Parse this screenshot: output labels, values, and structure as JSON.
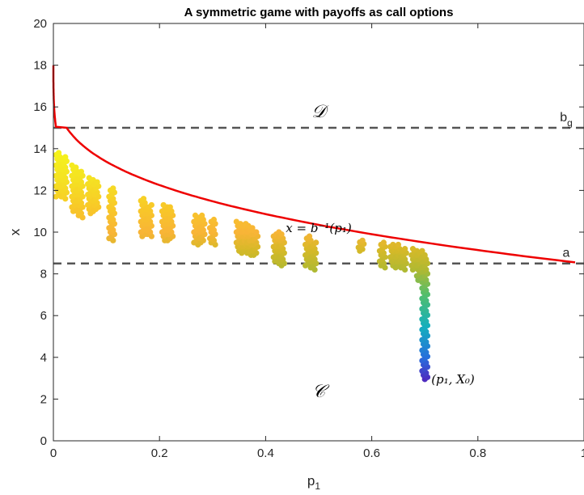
{
  "chart_data": {
    "type": "scatter",
    "title": "A symmetric game with payoffs as call options",
    "xlabel": "p",
    "xlabel_sub": "1",
    "ylabel": "x",
    "xlim": [
      0,
      1
    ],
    "ylim": [
      0,
      20
    ],
    "x_ticks": [
      "0",
      "0.2",
      "0.4",
      "0.6",
      "0.8",
      "1"
    ],
    "y_ticks": [
      "0",
      "2",
      "4",
      "6",
      "8",
      "10",
      "12",
      "14",
      "16",
      "18",
      "20"
    ],
    "grid": false,
    "reference_lines": [
      {
        "label": "b",
        "label_sub": "g",
        "y": 15,
        "style": "dashed",
        "color": "#555555"
      },
      {
        "label": "a",
        "y": 8.5,
        "style": "dashed",
        "color": "#555555"
      }
    ],
    "curve": {
      "name": "x = b⁻¹(p₁)",
      "color": "#ee0000"
    },
    "region_labels": [
      {
        "text": "𝒟",
        "x": 0.5,
        "y": 15.5
      },
      {
        "text": "𝒞",
        "x": 0.5,
        "y": 2.1
      }
    ],
    "annotations": [
      {
        "text": "x = b⁻¹(p₁)",
        "x": 0.5,
        "y": 10.0
      },
      {
        "text": "(p₁, X₀)",
        "x": 0.7,
        "y": 2.95
      }
    ],
    "scatter_columns": [
      {
        "x": 0.01,
        "ymin": 11.7,
        "ymax": 13.8
      },
      {
        "x": 0.02,
        "ymin": 11.6,
        "ymax": 13.6
      },
      {
        "x": 0.04,
        "ymin": 11.0,
        "ymax": 13.2
      },
      {
        "x": 0.05,
        "ymin": 10.7,
        "ymax": 12.9
      },
      {
        "x": 0.07,
        "ymin": 10.9,
        "ymax": 12.6
      },
      {
        "x": 0.08,
        "ymin": 11.0,
        "ymax": 12.4
      },
      {
        "x": 0.11,
        "ymin": 9.6,
        "ymax": 12.1
      },
      {
        "x": 0.17,
        "ymin": 9.8,
        "ymax": 11.6
      },
      {
        "x": 0.18,
        "ymin": 9.8,
        "ymax": 11.3
      },
      {
        "x": 0.21,
        "ymin": 9.6,
        "ymax": 11.3
      },
      {
        "x": 0.22,
        "ymin": 9.6,
        "ymax": 11.2
      },
      {
        "x": 0.27,
        "ymin": 9.4,
        "ymax": 10.8
      },
      {
        "x": 0.28,
        "ymin": 9.5,
        "ymax": 10.8
      },
      {
        "x": 0.3,
        "ymin": 9.4,
        "ymax": 10.6
      },
      {
        "x": 0.35,
        "ymin": 9.1,
        "ymax": 10.5
      },
      {
        "x": 0.36,
        "ymin": 9.0,
        "ymax": 10.4
      },
      {
        "x": 0.37,
        "ymin": 8.9,
        "ymax": 10.3
      },
      {
        "x": 0.38,
        "ymin": 8.9,
        "ymax": 10.1
      },
      {
        "x": 0.42,
        "ymin": 8.5,
        "ymax": 10.0
      },
      {
        "x": 0.43,
        "ymin": 8.4,
        "ymax": 9.9
      },
      {
        "x": 0.48,
        "ymin": 8.4,
        "ymax": 9.8
      },
      {
        "x": 0.49,
        "ymin": 8.2,
        "ymax": 9.5
      },
      {
        "x": 0.58,
        "ymin": 9.1,
        "ymax": 9.6
      },
      {
        "x": 0.62,
        "ymin": 8.3,
        "ymax": 9.5
      },
      {
        "x": 0.64,
        "ymin": 8.4,
        "ymax": 9.4
      },
      {
        "x": 0.65,
        "ymin": 8.3,
        "ymax": 9.4
      },
      {
        "x": 0.66,
        "ymin": 8.2,
        "ymax": 9.2
      },
      {
        "x": 0.68,
        "ymin": 8.2,
        "ymax": 9.2
      },
      {
        "x": 0.69,
        "ymin": 7.6,
        "ymax": 9.1
      },
      {
        "x": 0.7,
        "ymin": 2.95,
        "ymax": 8.9
      }
    ]
  }
}
